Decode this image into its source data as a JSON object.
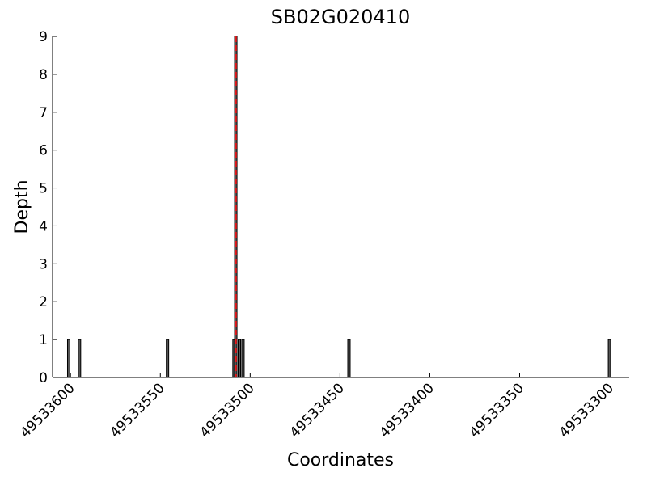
{
  "chart_data": {
    "type": "bar",
    "title": "SB02G020410",
    "xlabel": "Coordinates",
    "ylabel": "Depth",
    "x": [
      49533601,
      49533595,
      49533546,
      49533509,
      49533508,
      49533506,
      49533504,
      49533445,
      49533300
    ],
    "values": [
      1,
      1,
      1,
      1,
      9,
      1,
      1,
      1,
      1
    ],
    "color": "#555555",
    "xlim": [
      49533610,
      49533289
    ],
    "xticks": [
      49533600,
      49533550,
      49533500,
      49533450,
      49533400,
      49533350,
      49533300
    ],
    "ylim": [
      0,
      9
    ],
    "yticks": [
      0,
      1,
      2,
      3,
      4,
      5,
      6,
      7,
      8,
      9
    ],
    "marker_x": 49533508,
    "marker_color": "#e41a1c"
  }
}
